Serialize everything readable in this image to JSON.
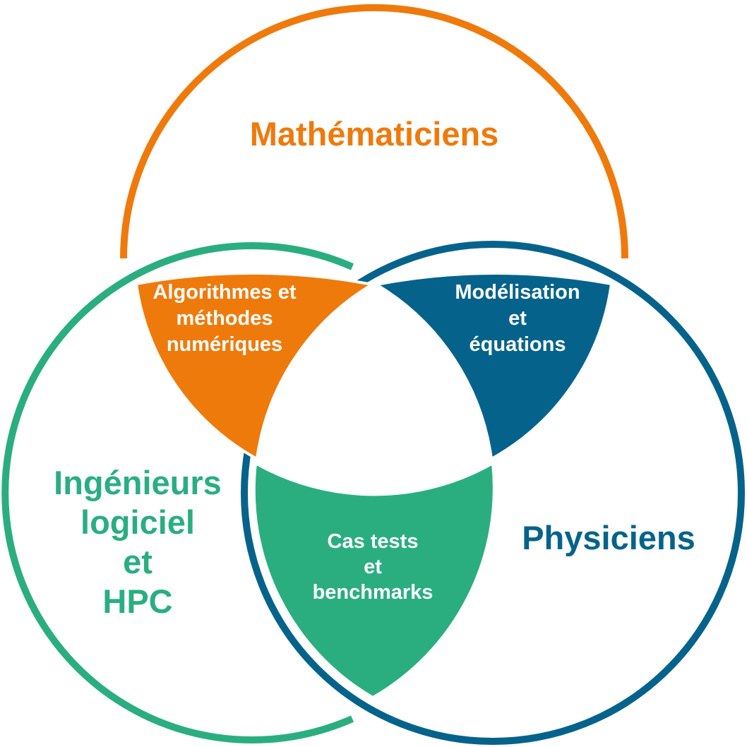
{
  "circles": {
    "mathematicians": {
      "label": "Mathématiciens",
      "color": "#EF7A0C"
    },
    "engineers": {
      "label_lines": [
        "Ingénieurs",
        "logiciel",
        "et",
        "HPC"
      ],
      "color": "#2AAE80"
    },
    "physicists": {
      "label": "Physiciens",
      "color": "#05638B"
    }
  },
  "overlaps": {
    "mathematicians_engineers": {
      "label_lines": [
        "Algorithmes et",
        "méthodes",
        "numériques"
      ],
      "color": "#EF7A0C"
    },
    "mathematicians_physicists": {
      "label_lines": [
        "Modélisation",
        "et",
        "équations"
      ],
      "color": "#05638B"
    },
    "engineers_physicists": {
      "label_lines": [
        "Cas tests",
        "et",
        "benchmarks"
      ],
      "color": "#2AAE80"
    }
  }
}
